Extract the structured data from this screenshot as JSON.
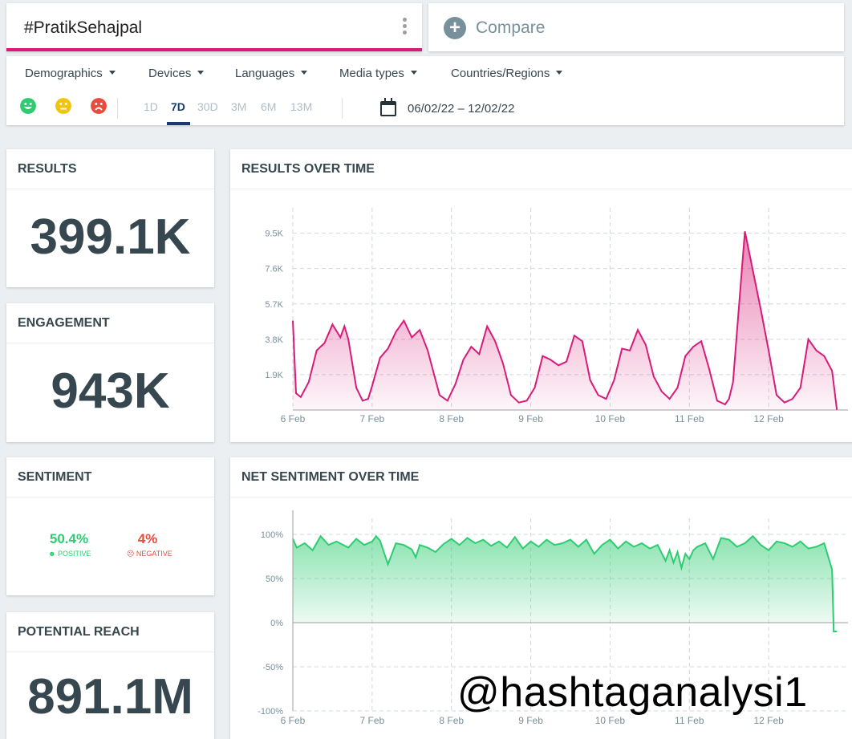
{
  "search": {
    "query": "#PratikSehajpal"
  },
  "compare": {
    "label": "Compare"
  },
  "filters": [
    "Demographics",
    "Devices",
    "Languages",
    "Media types",
    "Countries/Regions"
  ],
  "ranges": [
    "1D",
    "7D",
    "30D",
    "3M",
    "6M",
    "13M"
  ],
  "active_range": "7D",
  "date_range": "06/02/22 – 12/02/22",
  "colors": {
    "accent": "#d81b78",
    "positive": "#2ecc71",
    "neutral": "#f1c40f",
    "negative": "#e74c3c",
    "nav": "#1a3a6b"
  },
  "results": {
    "title": "RESULTS",
    "value": "399.1K"
  },
  "engagement": {
    "title": "ENGAGEMENT",
    "value": "943K"
  },
  "sentiment": {
    "title": "SENTIMENT",
    "positive_value": "50.4%",
    "positive_label": "POSITIVE",
    "negative_value": "4%",
    "negative_label": "NEGATIVE"
  },
  "reach": {
    "title": "POTENTIAL REACH",
    "value": "891.1M"
  },
  "watermark": "@hashtaganalysi1",
  "chart_data": [
    {
      "type": "area",
      "title": "RESULTS OVER TIME",
      "color": "#d81b78",
      "y_ticks": [
        "1.9K",
        "3.8K",
        "5.7K",
        "7.6K",
        "9.5K"
      ],
      "x_ticks": [
        "6 Feb",
        "7 Feb",
        "8 Feb",
        "9 Feb",
        "10 Feb",
        "11 Feb",
        "12 Feb"
      ],
      "ylim": [
        0,
        10000
      ],
      "xlim": [
        0,
        7
      ],
      "x": [
        0,
        0.04,
        0.1,
        0.2,
        0.3,
        0.4,
        0.5,
        0.6,
        0.65,
        0.7,
        0.8,
        0.88,
        0.95,
        1.0,
        1.1,
        1.2,
        1.3,
        1.4,
        1.5,
        1.6,
        1.7,
        1.85,
        1.95,
        2.05,
        2.15,
        2.25,
        2.35,
        2.45,
        2.55,
        2.65,
        2.75,
        2.85,
        2.95,
        3.05,
        3.15,
        3.25,
        3.35,
        3.45,
        3.55,
        3.65,
        3.75,
        3.85,
        3.95,
        4.05,
        4.15,
        4.25,
        4.35,
        4.45,
        4.55,
        4.65,
        4.75,
        4.85,
        4.95,
        5.05,
        5.15,
        5.25,
        5.35,
        5.45,
        5.5,
        5.55,
        5.6,
        5.7,
        5.8,
        5.9,
        6.0,
        6.1,
        6.2,
        6.3,
        6.4,
        6.5,
        6.6,
        6.7,
        6.8,
        6.86
      ],
      "y": [
        4800,
        900,
        700,
        1500,
        3200,
        3600,
        4600,
        3900,
        4500,
        3800,
        1200,
        500,
        600,
        1300,
        2800,
        3300,
        4200,
        4800,
        3900,
        4300,
        3200,
        800,
        500,
        1400,
        2700,
        3400,
        3000,
        4500,
        3700,
        2500,
        800,
        400,
        500,
        1200,
        2900,
        2700,
        2400,
        2600,
        4000,
        3700,
        1600,
        800,
        600,
        1600,
        3300,
        3200,
        4300,
        3500,
        1800,
        1000,
        600,
        1200,
        2900,
        3400,
        3700,
        2200,
        500,
        300,
        600,
        1500,
        4200,
        9600,
        7500,
        5400,
        3200,
        800,
        400,
        600,
        1200,
        3800,
        3200,
        2900,
        2100,
        0
      ]
    },
    {
      "type": "area",
      "title": "NET SENTIMENT OVER TIME",
      "color": "#2ecc71",
      "y_ticks": [
        "100%",
        "50%",
        "0%",
        "-50%",
        "-100%"
      ],
      "x_ticks": [
        "6 Feb",
        "7 Feb",
        "8 Feb",
        "9 Feb",
        "10 Feb",
        "11 Feb",
        "12 Feb"
      ],
      "ylim": [
        -100,
        100
      ],
      "xlim": [
        0,
        7
      ],
      "x": [
        0,
        0.05,
        0.15,
        0.25,
        0.35,
        0.45,
        0.55,
        0.7,
        0.8,
        0.9,
        1.0,
        1.05,
        1.1,
        1.2,
        1.3,
        1.4,
        1.5,
        1.55,
        1.6,
        1.7,
        1.8,
        1.9,
        2.0,
        2.1,
        2.2,
        2.3,
        2.4,
        2.5,
        2.6,
        2.7,
        2.8,
        2.9,
        3.0,
        3.1,
        3.2,
        3.3,
        3.4,
        3.5,
        3.6,
        3.7,
        3.8,
        3.9,
        4.0,
        4.1,
        4.2,
        4.3,
        4.4,
        4.5,
        4.6,
        4.7,
        4.75,
        4.8,
        4.85,
        4.9,
        4.95,
        5.0,
        5.05,
        5.1,
        5.2,
        5.3,
        5.4,
        5.5,
        5.6,
        5.7,
        5.8,
        5.9,
        6.0,
        6.1,
        6.2,
        6.3,
        6.4,
        6.5,
        6.6,
        6.7,
        6.8,
        6.82,
        6.86
      ],
      "y": [
        95,
        85,
        90,
        82,
        98,
        88,
        92,
        85,
        95,
        88,
        92,
        98,
        93,
        66,
        90,
        88,
        83,
        74,
        88,
        85,
        80,
        89,
        95,
        88,
        96,
        90,
        94,
        87,
        92,
        85,
        97,
        84,
        92,
        86,
        94,
        88,
        90,
        94,
        86,
        94,
        78,
        88,
        94,
        84,
        92,
        86,
        90,
        84,
        88,
        70,
        82,
        68,
        80,
        62,
        78,
        72,
        82,
        86,
        90,
        72,
        96,
        94,
        86,
        90,
        98,
        88,
        82,
        92,
        90,
        86,
        92,
        84,
        86,
        90,
        60,
        -10,
        -10
      ]
    }
  ]
}
